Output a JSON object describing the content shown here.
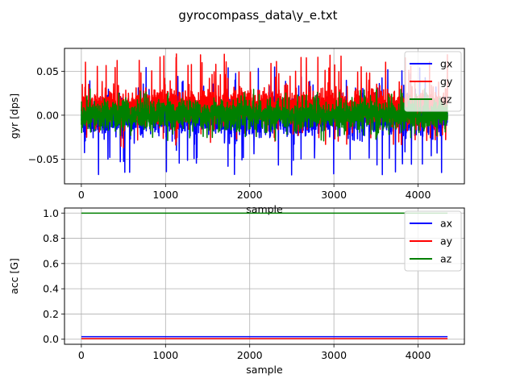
{
  "figure": {
    "title": "gyrocompass_data\\y_e.txt"
  },
  "chart_data": [
    {
      "type": "line",
      "xlabel": "sample",
      "ylabel": "gyr [dps]",
      "xlim": [
        -200,
        4550
      ],
      "ylim": [
        -0.078,
        0.076
      ],
      "xticks": [
        0,
        1000,
        2000,
        3000,
        4000
      ],
      "yticks": [
        -0.05,
        0.0,
        0.05
      ],
      "ytick_labels": [
        "−0.05",
        "0.00",
        "0.05"
      ],
      "grid": true,
      "legend": "top-right",
      "x_range": [
        0,
        4350
      ],
      "series": [
        {
          "name": "gx",
          "color": "#0000ff",
          "center": -0.003,
          "band_low": -0.033,
          "band_high": 0.025,
          "min": -0.068,
          "max": 0.055,
          "noise": 0.01
        },
        {
          "name": "gy",
          "color": "#ff0000",
          "center": 0.01,
          "band_low": -0.016,
          "band_high": 0.042,
          "min": -0.038,
          "max": 0.07,
          "noise": 0.01
        },
        {
          "name": "gz",
          "color": "#008000",
          "center": 0.0,
          "band_low": -0.022,
          "band_high": 0.022,
          "min": -0.03,
          "max": 0.03,
          "noise": 0.008
        }
      ]
    },
    {
      "type": "line",
      "xlabel": "sample",
      "ylabel": "acc [G]",
      "xlim": [
        -200,
        4550
      ],
      "ylim": [
        -0.04,
        1.04
      ],
      "xticks": [
        0,
        1000,
        2000,
        3000,
        4000
      ],
      "yticks": [
        0.0,
        0.2,
        0.4,
        0.6,
        0.8,
        1.0
      ],
      "ytick_labels": [
        "0.0",
        "0.2",
        "0.4",
        "0.6",
        "0.8",
        "1.0"
      ],
      "grid": true,
      "legend": "top-right",
      "x_range": [
        0,
        4350
      ],
      "series": [
        {
          "name": "ax",
          "color": "#0000ff",
          "value": 0.02
        },
        {
          "name": "ay",
          "color": "#ff0000",
          "value": 0.005
        },
        {
          "name": "az",
          "color": "#008000",
          "value": 0.999
        }
      ]
    }
  ]
}
